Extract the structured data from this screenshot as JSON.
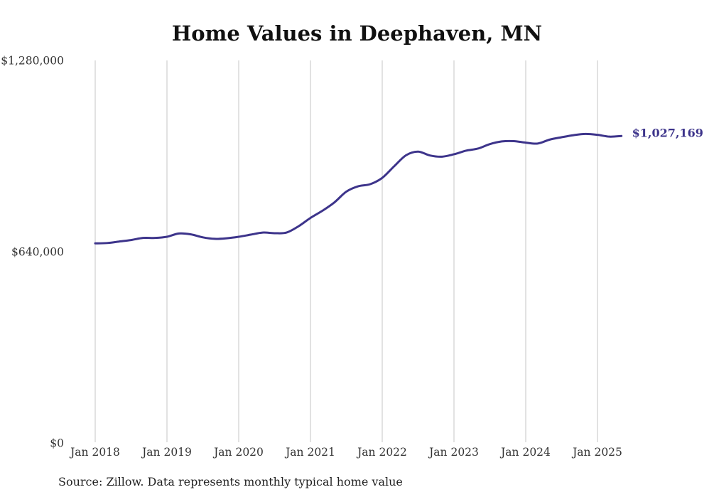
{
  "title": "Home Values in Deephaven, MN",
  "source_note": "Source: Zillow. Data represents monthly typical home value",
  "colors": {
    "line": "#3d348b",
    "grid": "#c4c4c4",
    "text": "#333333"
  },
  "chart_data": {
    "type": "line",
    "title": "Home Values in Deephaven, MN",
    "xlabel": "",
    "ylabel": "",
    "grid": "vertical",
    "legend": "none",
    "xlim": [
      "2018-01",
      "2025-05"
    ],
    "ylim": [
      0,
      1280000
    ],
    "y_ticks": [
      {
        "value": 0,
        "label": "$0"
      },
      {
        "value": 640000,
        "label": "$640,000"
      },
      {
        "value": 1280000,
        "label": "$1,280,000"
      }
    ],
    "x_ticks": [
      {
        "value": "2018-01",
        "label": "Jan 2018"
      },
      {
        "value": "2019-01",
        "label": "Jan 2019"
      },
      {
        "value": "2020-01",
        "label": "Jan 2020"
      },
      {
        "value": "2021-01",
        "label": "Jan 2021"
      },
      {
        "value": "2022-01",
        "label": "Jan 2022"
      },
      {
        "value": "2023-01",
        "label": "Jan 2023"
      },
      {
        "value": "2024-01",
        "label": "Jan 2024"
      },
      {
        "value": "2025-01",
        "label": "Jan 2025"
      }
    ],
    "end_label": "$1,027,169",
    "series": [
      {
        "name": "",
        "points": [
          [
            "2018-01",
            668000
          ],
          [
            "2018-03",
            669000
          ],
          [
            "2018-05",
            674000
          ],
          [
            "2018-07",
            679000
          ],
          [
            "2018-09",
            686000
          ],
          [
            "2018-11",
            686000
          ],
          [
            "2019-01",
            690000
          ],
          [
            "2019-03",
            701000
          ],
          [
            "2019-05",
            698000
          ],
          [
            "2019-07",
            688000
          ],
          [
            "2019-09",
            683000
          ],
          [
            "2019-11",
            685000
          ],
          [
            "2020-01",
            690000
          ],
          [
            "2020-03",
            697000
          ],
          [
            "2020-05",
            704000
          ],
          [
            "2020-07",
            702000
          ],
          [
            "2020-09",
            704000
          ],
          [
            "2020-11",
            725000
          ],
          [
            "2021-01",
            753000
          ],
          [
            "2021-03",
            777000
          ],
          [
            "2021-05",
            805000
          ],
          [
            "2021-07",
            841000
          ],
          [
            "2021-09",
            859000
          ],
          [
            "2021-11",
            866000
          ],
          [
            "2022-01",
            887000
          ],
          [
            "2022-03",
            926000
          ],
          [
            "2022-05",
            963000
          ],
          [
            "2022-07",
            975000
          ],
          [
            "2022-09",
            962000
          ],
          [
            "2022-11",
            958000
          ],
          [
            "2023-01",
            966000
          ],
          [
            "2023-03",
            978000
          ],
          [
            "2023-05",
            985000
          ],
          [
            "2023-07",
            1000000
          ],
          [
            "2023-09",
            1009000
          ],
          [
            "2023-11",
            1010000
          ],
          [
            "2024-01",
            1005000
          ],
          [
            "2024-03",
            1002000
          ],
          [
            "2024-05",
            1015000
          ],
          [
            "2024-07",
            1023000
          ],
          [
            "2024-09",
            1030000
          ],
          [
            "2024-11",
            1034000
          ],
          [
            "2025-01",
            1031000
          ],
          [
            "2025-03",
            1025000
          ],
          [
            "2025-05",
            1027169
          ]
        ]
      }
    ]
  }
}
